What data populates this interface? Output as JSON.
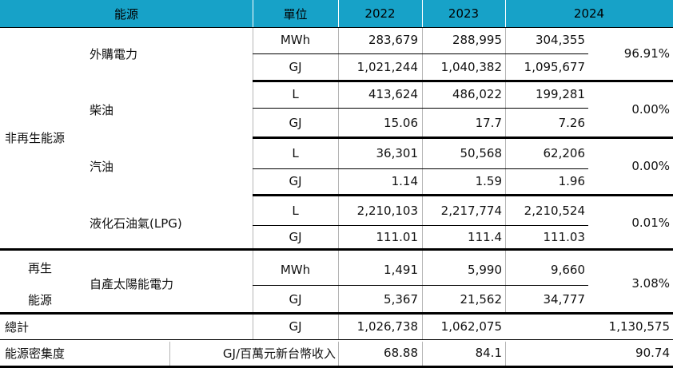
{
  "headers": {
    "source": "能源",
    "unit": "單位",
    "y2022": "2022",
    "y2023": "2023",
    "y2024": "2024"
  },
  "groups": {
    "nonrenewable": "非再生能源",
    "renewable_line1": "再生",
    "renewable_line2": "能源"
  },
  "rows": {
    "purchased_electricity": {
      "label": "外購電力",
      "unit1": "MWh",
      "v1_2022": "283,679",
      "v1_2023": "288,995",
      "v1_2024": "304,355",
      "unit2": "GJ",
      "v2_2022": "1,021,244",
      "v2_2023": "1,040,382",
      "v2_2024": "1,095,677",
      "share": "96.91%"
    },
    "diesel": {
      "label": "柴油",
      "unit1": "L",
      "v1_2022": "413,624",
      "v1_2023": "486,022",
      "v1_2024": "199,281",
      "unit2": "GJ",
      "v2_2022": "15.06",
      "v2_2023": "17.7",
      "v2_2024": "7.26",
      "share": "0.00%"
    },
    "gasoline": {
      "label": "汽油",
      "unit1": "L",
      "v1_2022": "36,301",
      "v1_2023": "50,568",
      "v1_2024": "62,206",
      "unit2": "GJ",
      "v2_2022": "1.14",
      "v2_2023": "1.59",
      "v2_2024": "1.96",
      "share": "0.00%"
    },
    "lpg": {
      "label": "液化石油氣(LPG)",
      "unit1": "L",
      "v1_2022": "2,210,103",
      "v1_2023": "2,217,774",
      "v1_2024": "2,210,524",
      "unit2": "GJ",
      "v2_2022": "111.01",
      "v2_2023": "111.4",
      "v2_2024": "111.03",
      "share": "0.01%"
    },
    "solar": {
      "label": "自產太陽能電力",
      "unit1": "MWh",
      "v1_2022": "1,491",
      "v1_2023": "5,990",
      "v1_2024": "9,660",
      "unit2": "GJ",
      "v2_2022": "5,367",
      "v2_2023": "21,562",
      "v2_2024": "34,777",
      "share": "3.08%"
    }
  },
  "total": {
    "label": "總計",
    "unit": "GJ",
    "v2022": "1,026,738",
    "v2023": "1,062,075",
    "v2024": "1,130,575"
  },
  "intensity": {
    "label": "能源密集度",
    "unit": "GJ/百萬元新台幣收入",
    "v2022": "68.88",
    "v2023": "84.1",
    "v2024": "90.74"
  },
  "colors": {
    "header_bg": "#17a2c8",
    "rule": "#000000",
    "divider": "#b5b5b5"
  }
}
